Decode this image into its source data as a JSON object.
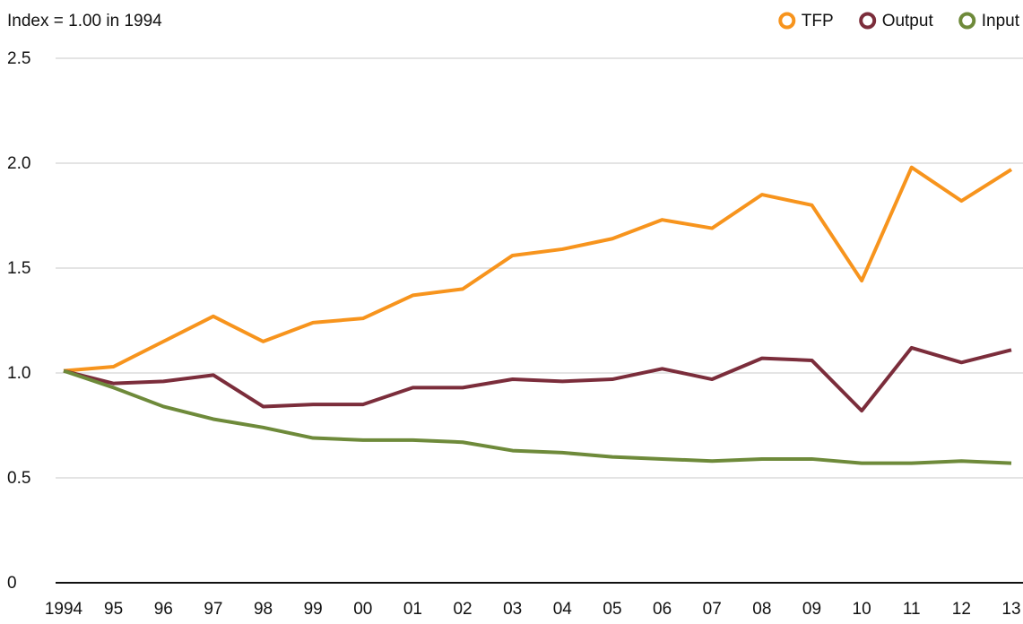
{
  "chart_data": {
    "type": "line",
    "subtitle": "Index = 1.00 in 1994",
    "categories": [
      "1994",
      "95",
      "96",
      "97",
      "98",
      "99",
      "00",
      "01",
      "02",
      "03",
      "04",
      "05",
      "06",
      "07",
      "08",
      "09",
      "10",
      "11",
      "12",
      "13"
    ],
    "series": [
      {
        "name": "TFP",
        "color": "#f7941d",
        "values": [
          1.01,
          1.03,
          1.15,
          1.27,
          1.15,
          1.24,
          1.26,
          1.37,
          1.4,
          1.56,
          1.59,
          1.64,
          1.73,
          1.69,
          1.85,
          1.8,
          1.44,
          1.98,
          1.82,
          1.97
        ]
      },
      {
        "name": "Output",
        "color": "#7b2d3b",
        "values": [
          1.01,
          0.95,
          0.96,
          0.99,
          0.84,
          0.85,
          0.85,
          0.93,
          0.93,
          0.97,
          0.96,
          0.97,
          1.02,
          0.97,
          1.07,
          1.06,
          0.82,
          1.12,
          1.05,
          1.11
        ]
      },
      {
        "name": "Input",
        "color": "#6e8a3a",
        "values": [
          1.01,
          0.93,
          0.84,
          0.78,
          0.74,
          0.69,
          0.68,
          0.68,
          0.67,
          0.63,
          0.62,
          0.6,
          0.59,
          0.58,
          0.59,
          0.59,
          0.57,
          0.57,
          0.58,
          0.57
        ]
      }
    ],
    "ylim": [
      0,
      2.5
    ],
    "yticks": [
      0,
      0.5,
      {
        "value": 1,
        "label": "1.0"
      },
      1.5,
      {
        "value": 2,
        "label": "2.0"
      },
      2.5
    ],
    "grid": true,
    "legend": "top-right"
  }
}
